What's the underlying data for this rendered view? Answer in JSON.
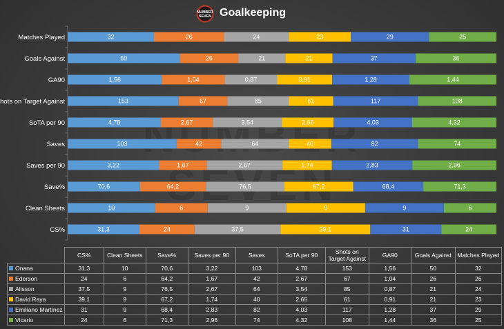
{
  "title": "Goalkeeping",
  "logo": {
    "line1": "NUMBER",
    "line2": "SEVEN",
    "watermark": "NUMBER SEVEN"
  },
  "chart_data": {
    "type": "stacked-bar-100",
    "title": "Goalkeeping",
    "orientation": "horizontal",
    "categories": [
      "Matches Played",
      "Goals Against",
      "GA90",
      "Shots on Target Against",
      "SoTA per 90",
      "Saves",
      "Saves per 90",
      "Save%",
      "Clean Sheets",
      "CS%"
    ],
    "series": [
      {
        "name": "Onana",
        "color": "#5b9bd5",
        "values": [
          "32",
          "50",
          "1,56",
          "153",
          "4,78",
          "103",
          "3,22",
          "70,6",
          "10",
          "31,3"
        ]
      },
      {
        "name": "Ederson",
        "color": "#ed7d31",
        "values": [
          "26",
          "26",
          "1,04",
          "67",
          "2,67",
          "42",
          "1,67",
          "64,2",
          "6",
          "24"
        ]
      },
      {
        "name": "Alisson",
        "color": "#a5a5a5",
        "values": [
          "24",
          "21",
          "0,87",
          "85",
          "3,54",
          "64",
          "2,67",
          "76,5",
          "9",
          "37,5"
        ]
      },
      {
        "name": "David Raya",
        "color": "#ffc000",
        "values": [
          "23",
          "21",
          "0,91",
          "61",
          "2,65",
          "40",
          "1,74",
          "67,2",
          "9",
          "39,1"
        ]
      },
      {
        "name": "Emiliano Martínez",
        "color": "#4472c4",
        "values": [
          "29",
          "37",
          "1,28",
          "117",
          "4,03",
          "82",
          "2,83",
          "68,4",
          "9",
          "31"
        ]
      },
      {
        "name": "Vicario",
        "color": "#70ad47",
        "values": [
          "25",
          "36",
          "1,44",
          "108",
          "4,32",
          "74",
          "2,96",
          "71,3",
          "6",
          "24"
        ]
      }
    ]
  },
  "table": {
    "headers": [
      "CS%",
      "Clean Sheets",
      "Save%",
      "Saves per 90",
      "Saves",
      "SoTA per 90",
      "Shots on Target Against",
      "GA90",
      "Goals Against",
      "Matches Played"
    ],
    "rows": [
      {
        "name": "Onana",
        "color": "#5b9bd5",
        "cells": [
          "31,3",
          "10",
          "70,6",
          "3,22",
          "103",
          "4,78",
          "153",
          "1,56",
          "50",
          "32"
        ]
      },
      {
        "name": "Ederson",
        "color": "#ed7d31",
        "cells": [
          "24",
          "6",
          "64,2",
          "1,67",
          "42",
          "2,67",
          "67",
          "1,04",
          "26",
          "26"
        ]
      },
      {
        "name": "Alisson",
        "color": "#a5a5a5",
        "cells": [
          "37,5",
          "9",
          "76,5",
          "2,67",
          "64",
          "3,54",
          "85",
          "0,87",
          "21",
          "24"
        ]
      },
      {
        "name": "David Raya",
        "color": "#ffc000",
        "cells": [
          "39,1",
          "9",
          "67,2",
          "1,74",
          "40",
          "2,65",
          "61",
          "0,91",
          "21",
          "23"
        ]
      },
      {
        "name": "Emiliano Martínez",
        "color": "#4472c4",
        "cells": [
          "31",
          "9",
          "68,4",
          "2,83",
          "82",
          "4,03",
          "117",
          "1,28",
          "37",
          "29"
        ]
      },
      {
        "name": "Vicario",
        "color": "#70ad47",
        "cells": [
          "24",
          "6",
          "71,3",
          "2,96",
          "74",
          "4,32",
          "108",
          "1,44",
          "36",
          "25"
        ]
      }
    ]
  }
}
